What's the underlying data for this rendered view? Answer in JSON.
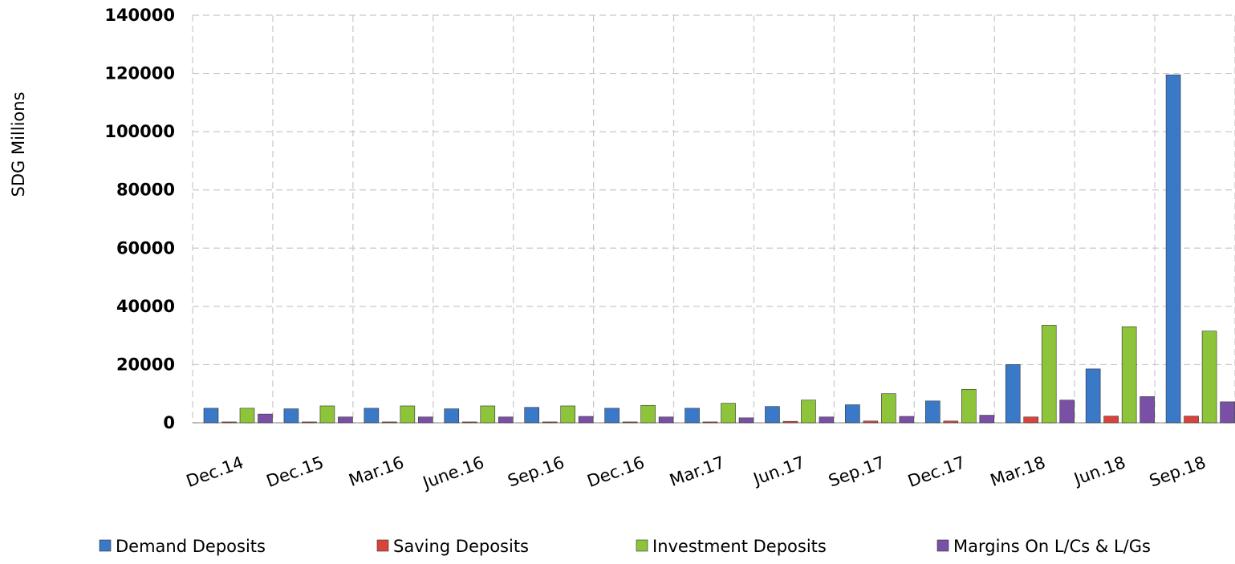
{
  "chart_data": {
    "type": "bar",
    "y_label": "SDG  Millions",
    "categories": [
      "Dec.14",
      "Dec.15",
      "Mar.16",
      "June.16",
      "Sep.16",
      "Dec.16",
      "Mar.17",
      "Jun.17",
      "Sep.17",
      "Dec.17",
      "Mar.18",
      "Jun.18",
      "Sep.18"
    ],
    "series": [
      {
        "name": "Demand Deposits",
        "color": "#3a78c8",
        "values": [
          5000,
          4800,
          5000,
          4800,
          5300,
          5000,
          5000,
          5600,
          6200,
          7500,
          20000,
          18500,
          119500
        ]
      },
      {
        "name": "Saving Deposits",
        "color": "#d9433b",
        "values": [
          300,
          300,
          300,
          300,
          300,
          300,
          300,
          500,
          600,
          600,
          2000,
          2300,
          2300
        ]
      },
      {
        "name": "Investment Deposits",
        "color": "#8dc43a",
        "values": [
          5000,
          5800,
          5800,
          5800,
          5800,
          6000,
          6700,
          7800,
          10000,
          11500,
          33500,
          33000,
          31500
        ]
      },
      {
        "name": "Margins On L/Cs & L/Gs",
        "color": "#7a4fa6",
        "values": [
          3000,
          2000,
          2000,
          2000,
          2200,
          2000,
          1700,
          2000,
          2200,
          2600,
          7800,
          9000,
          7200
        ]
      }
    ],
    "ylim": [
      0,
      140000
    ],
    "yticks": [
      0,
      20000,
      40000,
      60000,
      80000,
      100000,
      120000,
      140000
    ],
    "grid": true
  }
}
